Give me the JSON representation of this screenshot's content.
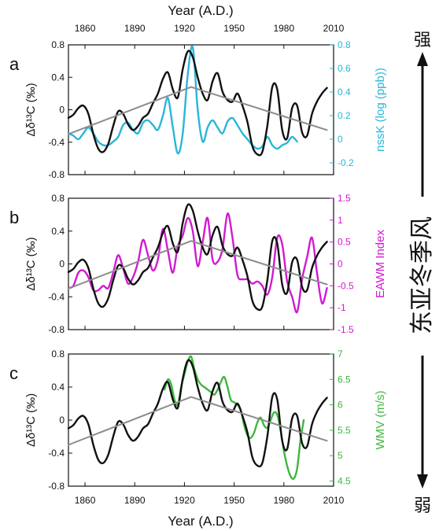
{
  "axes": {
    "x_title_top": "Year (A.D.)",
    "x_title_bottom": "Year (A.D.)",
    "left_title": "Δδ¹³C (‰)",
    "x_ticks": [
      "1860",
      "1890",
      "1920",
      "1950",
      "1980",
      "2010"
    ],
    "left_ticks": [
      "0.8",
      "0.4",
      "0",
      "-0.4",
      "-0.8"
    ]
  },
  "side_annotation": {
    "strong": "强",
    "weak": "弱",
    "label": "东亚冬季风"
  },
  "colors": {
    "d13c": "#111111",
    "trend": "#8c8c8c",
    "nssk": "#29b6d9",
    "eawm": "#d11ad1",
    "wmv": "#3cb83c"
  },
  "chart_data": [
    {
      "type": "line",
      "panel": "a",
      "xlim": [
        1850,
        2010
      ],
      "ylim": [
        -0.8,
        0.8
      ],
      "right_ylim": [
        -0.3,
        0.8
      ],
      "right_ylabel": "nssK (log (ppb))",
      "right_ticks": [
        "0.8",
        "0.6",
        "0.4",
        "0.2",
        "0",
        "-0.2"
      ],
      "right_tick_values": [
        0.8,
        0.6,
        0.4,
        0.2,
        0,
        -0.2
      ],
      "series": [
        {
          "key": "d13c",
          "x": [
            1850,
            1853,
            1856,
            1859,
            1862,
            1865,
            1868,
            1871,
            1874,
            1877,
            1880,
            1883,
            1886,
            1889,
            1892,
            1895,
            1898,
            1901,
            1904,
            1907,
            1910,
            1913,
            1916,
            1919,
            1922,
            1925,
            1928,
            1931,
            1934,
            1937,
            1940,
            1943,
            1946,
            1949,
            1952,
            1955,
            1958,
            1961,
            1964,
            1967,
            1970,
            1973,
            1976,
            1979,
            1982,
            1985,
            1988,
            1991,
            1994,
            1997,
            2000,
            2003,
            2006
          ],
          "y": [
            -0.1,
            -0.06,
            0.02,
            0.05,
            -0.05,
            -0.3,
            -0.48,
            -0.52,
            -0.42,
            -0.2,
            -0.02,
            -0.05,
            -0.18,
            -0.25,
            -0.2,
            -0.1,
            -0.05,
            0.08,
            0.2,
            0.38,
            0.46,
            0.25,
            0.15,
            0.5,
            0.72,
            0.65,
            0.4,
            0.2,
            0.12,
            0.35,
            0.45,
            0.22,
            0.12,
            0.1,
            0.2,
            0.05,
            -0.15,
            -0.45,
            -0.55,
            -0.52,
            -0.2,
            0.28,
            0.25,
            -0.25,
            -0.35,
            0.02,
            0.05,
            -0.28,
            -0.32,
            -0.05,
            0.1,
            0.2,
            0.27
          ]
        },
        {
          "key": "nssk",
          "axis": "right",
          "x": [
            1850,
            1853,
            1856,
            1859,
            1862,
            1865,
            1868,
            1871,
            1874,
            1877,
            1880,
            1883,
            1886,
            1889,
            1892,
            1895,
            1898,
            1901,
            1904,
            1907,
            1910,
            1913,
            1916,
            1919,
            1922,
            1925,
            1928,
            1931,
            1934,
            1937,
            1940,
            1943,
            1946,
            1949,
            1952,
            1955,
            1958,
            1961,
            1964,
            1967,
            1970,
            1973,
            1976,
            1979,
            1982,
            1985,
            1988
          ],
          "y": [
            0.05,
            0.03,
            0.0,
            0.05,
            0.1,
            0.05,
            -0.02,
            -0.05,
            -0.05,
            -0.02,
            0.02,
            0.12,
            0.14,
            0.08,
            0.05,
            0.14,
            0.16,
            0.12,
            0.08,
            0.2,
            0.35,
            0.1,
            -0.12,
            0.05,
            0.55,
            0.78,
            0.25,
            -0.02,
            0.1,
            0.16,
            0.1,
            0.05,
            0.15,
            0.18,
            0.12,
            0.05,
            0.0,
            -0.05,
            -0.08,
            -0.06,
            0.02,
            -0.05,
            -0.08,
            -0.05,
            -0.03,
            0.02,
            -0.02
          ]
        },
        {
          "key": "trend",
          "x": [
            1850,
            1924,
            2006
          ],
          "y": [
            -0.3,
            0.28,
            -0.25
          ]
        }
      ]
    },
    {
      "type": "line",
      "panel": "b",
      "xlim": [
        1850,
        2010
      ],
      "ylim": [
        -0.8,
        0.8
      ],
      "right_ylim": [
        -1.5,
        1.5
      ],
      "right_ylabel": "EAWM Index",
      "right_ticks": [
        "1.5",
        "1",
        "0.5",
        "0",
        "-0.5",
        "-1",
        "-1.5"
      ],
      "right_tick_values": [
        1.5,
        1,
        0.5,
        0,
        -0.5,
        -1,
        -1.5
      ],
      "series": [
        {
          "key": "d13c",
          "x": [
            1850,
            1853,
            1856,
            1859,
            1862,
            1865,
            1868,
            1871,
            1874,
            1877,
            1880,
            1883,
            1886,
            1889,
            1892,
            1895,
            1898,
            1901,
            1904,
            1907,
            1910,
            1913,
            1916,
            1919,
            1922,
            1925,
            1928,
            1931,
            1934,
            1937,
            1940,
            1943,
            1946,
            1949,
            1952,
            1955,
            1958,
            1961,
            1964,
            1967,
            1970,
            1973,
            1976,
            1979,
            1982,
            1985,
            1988,
            1991,
            1994,
            1997,
            2000,
            2003,
            2006
          ],
          "y": [
            -0.1,
            -0.06,
            0.02,
            0.05,
            -0.05,
            -0.3,
            -0.48,
            -0.52,
            -0.42,
            -0.2,
            -0.02,
            -0.05,
            -0.18,
            -0.25,
            -0.2,
            -0.1,
            -0.05,
            0.08,
            0.2,
            0.38,
            0.46,
            0.25,
            0.15,
            0.5,
            0.72,
            0.65,
            0.4,
            0.2,
            0.12,
            0.35,
            0.45,
            0.22,
            0.12,
            0.1,
            0.2,
            0.05,
            -0.15,
            -0.45,
            -0.55,
            -0.52,
            -0.2,
            0.28,
            0.25,
            -0.25,
            -0.35,
            0.02,
            0.05,
            -0.28,
            -0.32,
            -0.05,
            0.1,
            0.2,
            0.27
          ]
        },
        {
          "key": "eawm",
          "axis": "right",
          "x": [
            1850,
            1853,
            1856,
            1859,
            1862,
            1865,
            1868,
            1871,
            1874,
            1877,
            1880,
            1883,
            1886,
            1889,
            1892,
            1895,
            1898,
            1901,
            1904,
            1907,
            1910,
            1913,
            1916,
            1919,
            1922,
            1925,
            1928,
            1931,
            1934,
            1937,
            1940,
            1943,
            1946,
            1949,
            1952,
            1955,
            1958,
            1961,
            1964,
            1967,
            1970,
            1973,
            1976,
            1979,
            1982,
            1985,
            1988,
            1991,
            1994,
            1997,
            2000,
            2003,
            2006
          ],
          "y": [
            -0.55,
            -0.5,
            -0.2,
            -0.15,
            -0.3,
            -0.6,
            -0.6,
            -0.5,
            -0.55,
            -0.2,
            0.2,
            -0.1,
            -0.45,
            -0.3,
            0.05,
            0.55,
            0.2,
            -0.15,
            0.1,
            0.8,
            0.3,
            -0.2,
            0.4,
            0.65,
            1.05,
            0.75,
            -0.05,
            0.5,
            1.05,
            0.1,
            0.05,
            0.35,
            1.15,
            0.6,
            -0.25,
            -0.35,
            -0.35,
            -0.45,
            -0.4,
            -0.5,
            -0.7,
            -0.3,
            0.6,
            0.45,
            -0.4,
            -0.75,
            -1.1,
            -0.35,
            0.15,
            0.6,
            -0.2,
            -0.9,
            -0.55
          ]
        },
        {
          "key": "trend",
          "x": [
            1850,
            1924,
            2006
          ],
          "y": [
            -0.3,
            0.28,
            -0.25
          ]
        }
      ]
    },
    {
      "type": "line",
      "panel": "c",
      "xlim": [
        1850,
        2010
      ],
      "ylim": [
        -0.8,
        0.8
      ],
      "right_ylim": [
        4.4,
        7.0
      ],
      "right_ylabel": "WMV (m/s)",
      "right_ticks": [
        "7",
        "6.5",
        "6",
        "5.5",
        "5",
        "4.5"
      ],
      "right_tick_values": [
        7,
        6.5,
        6,
        5.5,
        5,
        4.5
      ],
      "series": [
        {
          "key": "d13c",
          "x": [
            1850,
            1853,
            1856,
            1859,
            1862,
            1865,
            1868,
            1871,
            1874,
            1877,
            1880,
            1883,
            1886,
            1889,
            1892,
            1895,
            1898,
            1901,
            1904,
            1907,
            1910,
            1913,
            1916,
            1919,
            1922,
            1925,
            1928,
            1931,
            1934,
            1937,
            1940,
            1943,
            1946,
            1949,
            1952,
            1955,
            1958,
            1961,
            1964,
            1967,
            1970,
            1973,
            1976,
            1979,
            1982,
            1985,
            1988,
            1991,
            1994,
            1997,
            2000,
            2003,
            2006
          ],
          "y": [
            -0.1,
            -0.06,
            0.02,
            0.05,
            -0.05,
            -0.3,
            -0.48,
            -0.52,
            -0.42,
            -0.2,
            -0.02,
            -0.05,
            -0.18,
            -0.25,
            -0.2,
            -0.1,
            -0.05,
            0.08,
            0.2,
            0.38,
            0.46,
            0.25,
            0.15,
            0.5,
            0.72,
            0.65,
            0.4,
            0.2,
            0.12,
            0.35,
            0.45,
            0.22,
            0.12,
            0.1,
            0.2,
            0.05,
            -0.15,
            -0.45,
            -0.55,
            -0.52,
            -0.2,
            0.28,
            0.25,
            -0.25,
            -0.35,
            0.02,
            0.05,
            -0.28,
            -0.32,
            -0.05,
            0.1,
            0.2,
            0.27
          ]
        },
        {
          "key": "wmv",
          "axis": "right",
          "x": [
            1908,
            1910,
            1912,
            1914,
            1916,
            1918,
            1920,
            1922,
            1924,
            1926,
            1928,
            1930,
            1932,
            1934,
            1936,
            1938,
            1940,
            1942,
            1944,
            1946,
            1948,
            1950,
            1952,
            1954,
            1956,
            1958,
            1960,
            1962,
            1964,
            1966,
            1968,
            1970,
            1972,
            1974,
            1976,
            1978,
            1980,
            1982,
            1984,
            1986,
            1988,
            1990,
            1992
          ],
          "y": [
            6.3,
            6.5,
            6.4,
            6.1,
            6.0,
            6.35,
            6.6,
            6.85,
            6.95,
            6.7,
            6.5,
            6.4,
            6.35,
            6.3,
            6.25,
            6.2,
            6.3,
            6.45,
            6.55,
            6.35,
            6.1,
            6.05,
            6.0,
            5.9,
            5.6,
            5.4,
            5.35,
            5.45,
            5.65,
            5.75,
            5.6,
            5.55,
            5.7,
            5.85,
            5.8,
            5.5,
            5.1,
            4.8,
            4.6,
            4.55,
            4.75,
            5.3,
            5.7
          ]
        },
        {
          "key": "trend",
          "x": [
            1850,
            1924,
            2006
          ],
          "y": [
            -0.3,
            0.28,
            -0.25
          ]
        }
      ]
    }
  ]
}
